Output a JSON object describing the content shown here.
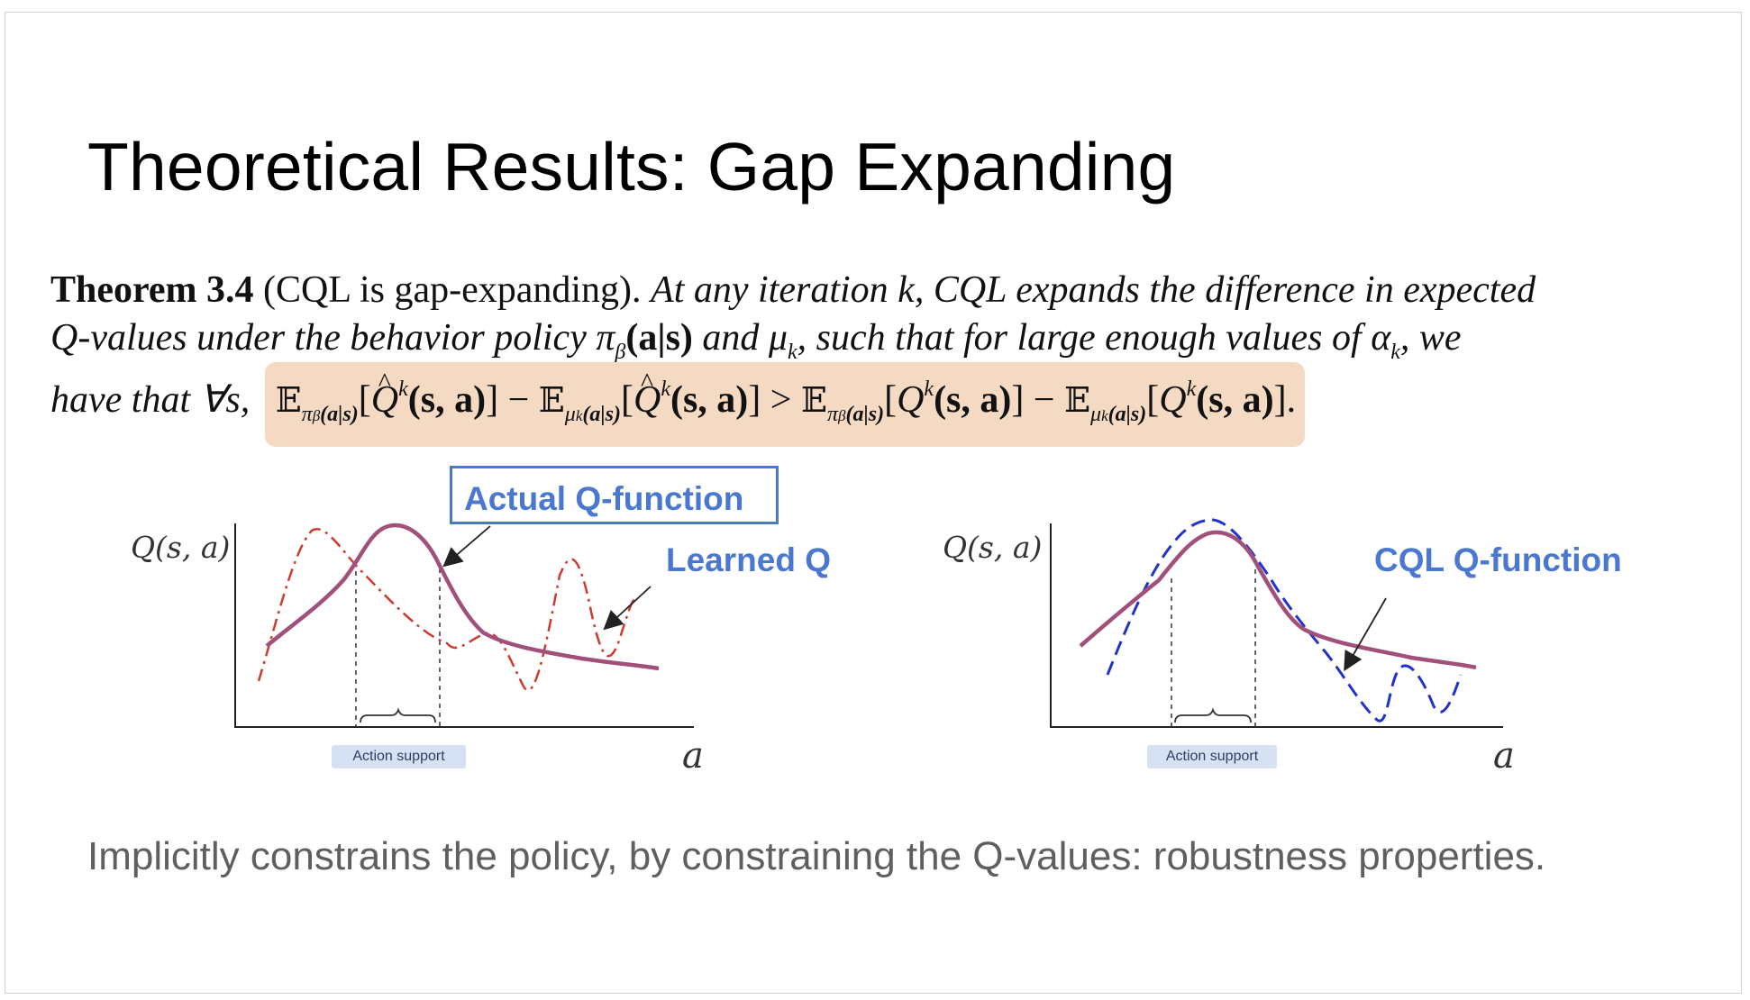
{
  "slide": {
    "title": "Theoretical Results: Gap Expanding",
    "theorem": {
      "name": "Theorem 3.4",
      "qualifier": "(CQL is gap-expanding).",
      "statement_line1": "At any iteration k, CQL expands the difference in expected",
      "statement_line2": "Q-values under the behavior policy π",
      "line2_beta": "β",
      "line2_as": "(a|s)",
      "line2_and": "and μ",
      "line2_k": "k",
      "line2_rest": ", such that for large enough values of α",
      "line2_ak": "k",
      "line2_end": ", we",
      "line3_prefix": "have that ∀s,",
      "formula": {
        "E": "𝔼",
        "pi_sub": "π",
        "beta": "β",
        "as": "(a|s)",
        "mu_sub": "μ",
        "k": "k",
        "Q": "Q",
        "sa": "(s, a)",
        "minus": "−",
        "gt": ">",
        "open": "[",
        "close": "]",
        "end": "."
      }
    },
    "left_plot": {
      "ylabel": "Q(s, a)",
      "xlabel": "a",
      "action_support": "Action support",
      "actual_q_label": "Actual Q-function",
      "learned_q_label": "Learned Q"
    },
    "right_plot": {
      "ylabel": "Q(s, a)",
      "xlabel": "a",
      "action_support": "Action support",
      "cql_label": "CQL Q-function"
    },
    "caption": "Implicitly constrains the policy, by constraining the Q-values: robustness properties.",
    "colors": {
      "actual_q": "#a0507a",
      "learned_q": "#cc3b2e",
      "cql_q": "#2233cc",
      "label_blue": "#4a78d0",
      "highlight": "#f4d9c3"
    }
  }
}
